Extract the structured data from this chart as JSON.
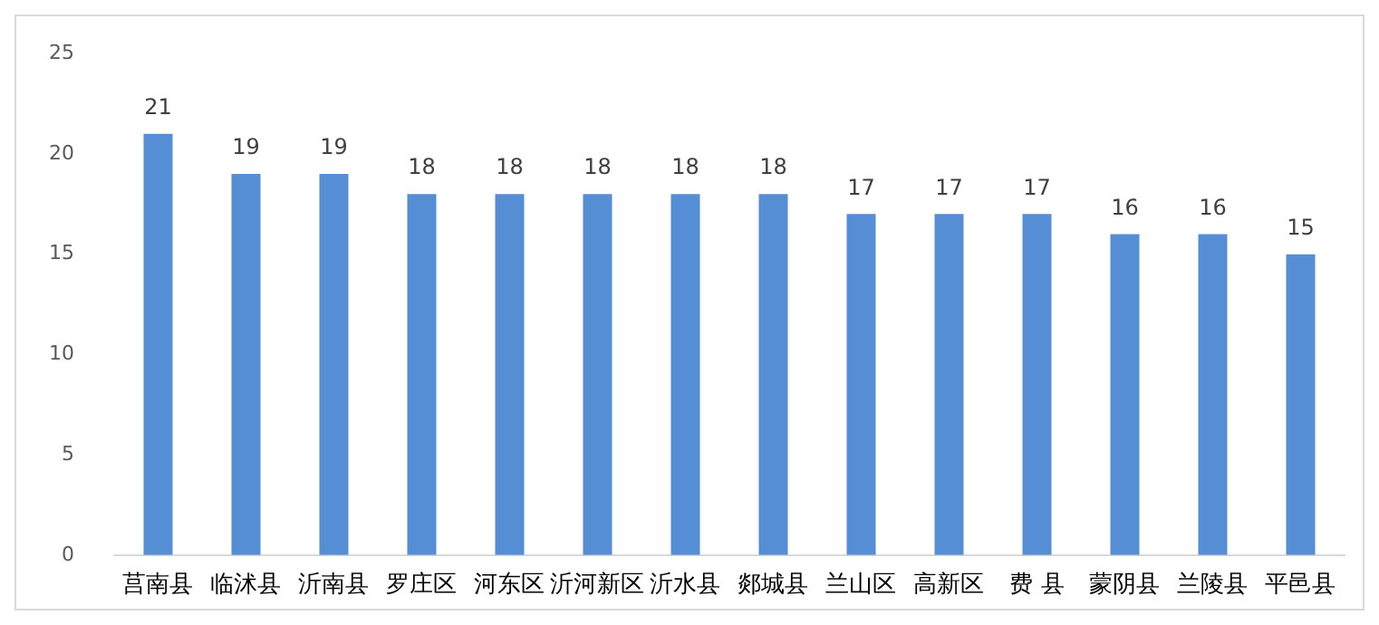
{
  "chart_data": {
    "type": "bar",
    "categories": [
      "莒南县",
      "临沭县",
      "沂南县",
      "罗庄区",
      "河东区",
      "沂河新区",
      "沂水县",
      "郯城县",
      "兰山区",
      "高新区",
      "费 县",
      "蒙阴县",
      "兰陵县",
      "平邑县"
    ],
    "values": [
      21,
      19,
      19,
      18,
      18,
      18,
      18,
      18,
      17,
      17,
      17,
      16,
      16,
      15
    ],
    "color": "#558ed5",
    "ylim": [
      0,
      25
    ],
    "yticks": [
      0,
      5,
      10,
      15,
      20,
      25
    ],
    "grid": false,
    "legend": false,
    "data_labels": true
  }
}
